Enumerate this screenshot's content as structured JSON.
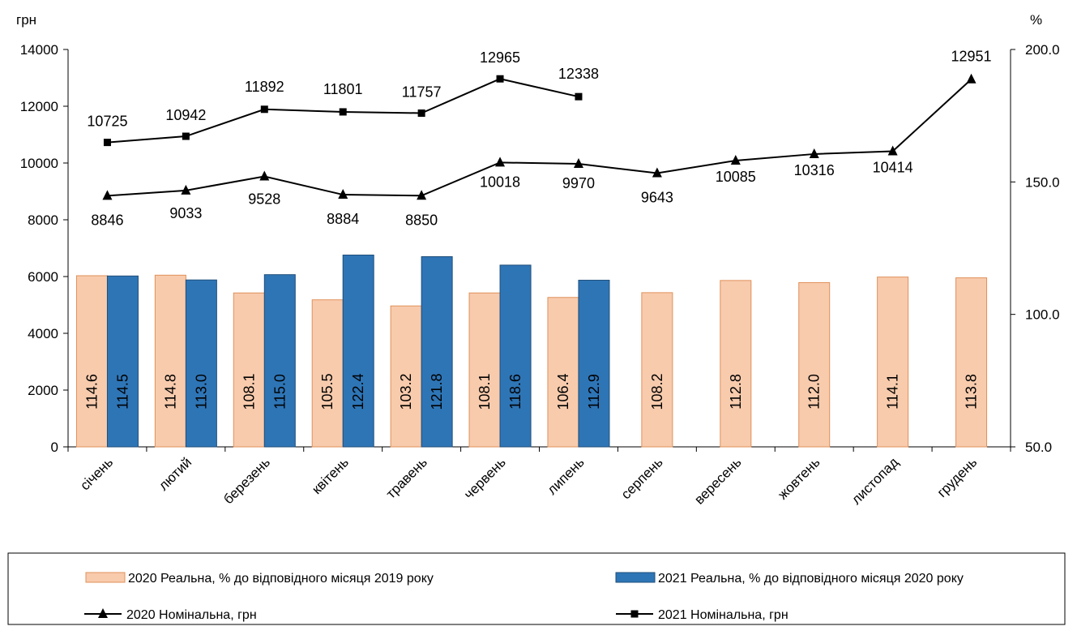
{
  "chart_data": {
    "type": "bar",
    "y_left_unit": "грн",
    "y_right_unit": "%",
    "y_left_lim": [
      0,
      14000
    ],
    "y_left_ticks": [
      "0",
      "2000",
      "4000",
      "6000",
      "8000",
      "10000",
      "12000",
      "14000"
    ],
    "y_right_lim": [
      50,
      200
    ],
    "y_right_ticks": [
      "50.0",
      "100.0",
      "150.0",
      "200.0"
    ],
    "categories": [
      "січень",
      "лютий",
      "березень",
      "квітень",
      "травень",
      "червень",
      "липень",
      "серпень",
      "вересень",
      "жовтень",
      "листопад",
      "грудень"
    ],
    "bar_series": [
      {
        "name": "2020 Реальна, % до відповідного місяця 2019 року",
        "axis": "right",
        "color": "#F8CBAD",
        "edge": "#E0915A",
        "values": [
          114.6,
          114.8,
          108.1,
          105.5,
          103.2,
          108.1,
          106.4,
          108.2,
          112.8,
          112.0,
          114.1,
          113.8
        ],
        "labels": [
          "114.6",
          "114.8",
          "108.1",
          "105.5",
          "103.2",
          "108.1",
          "106.4",
          "108.2",
          "112.8",
          "112.0",
          "114.1",
          "113.8"
        ]
      },
      {
        "name": "2021 Реальна, % до відповідного місяця 2020 року",
        "axis": "right",
        "color": "#2E75B6",
        "edge": "#1F4E79",
        "values": [
          114.5,
          113.0,
          115.0,
          122.4,
          121.8,
          118.6,
          112.9,
          null,
          null,
          null,
          null,
          null
        ],
        "labels": [
          "114.5",
          "113.0",
          "115.0",
          "122.4",
          "121.8",
          "118.6",
          "112.9",
          "",
          "",
          "",
          "",
          ""
        ]
      }
    ],
    "line_series": [
      {
        "name": "2020 Номінальна, грн",
        "axis": "left",
        "marker": "triangle",
        "values": [
          8846,
          9033,
          9528,
          8884,
          8850,
          10018,
          9970,
          9643,
          10085,
          10316,
          10414,
          12951
        ],
        "labels": [
          "8846",
          "9033",
          "9528",
          "8884",
          "8850",
          "10018",
          "9970",
          "9643",
          "10085",
          "10316",
          "10414",
          "12951"
        ]
      },
      {
        "name": "2021 Номінальна, грн",
        "axis": "left",
        "marker": "square",
        "values": [
          10725,
          10942,
          11892,
          11801,
          11757,
          12965,
          12338,
          null,
          null,
          null,
          null,
          null
        ],
        "labels": [
          "10725",
          "10942",
          "11892",
          "11801",
          "11757",
          "12965",
          "12338",
          "",
          "",
          "",
          "",
          ""
        ]
      }
    ]
  }
}
